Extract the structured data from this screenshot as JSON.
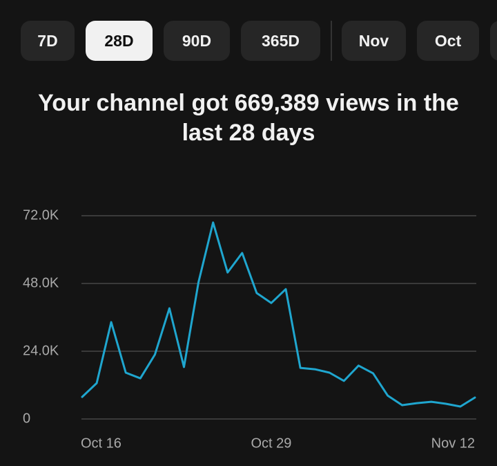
{
  "tabs": [
    "7D",
    "28D",
    "90D",
    "365D",
    "Nov",
    "Oct"
  ],
  "chart_data": {
    "type": "line",
    "title": "Your channel got 669,389 views in the last 28 days",
    "x": [
      "Oct 16",
      null,
      null,
      null,
      null,
      null,
      null,
      null,
      null,
      null,
      null,
      null,
      null,
      "Oct 29",
      null,
      null,
      null,
      null,
      null,
      null,
      null,
      null,
      null,
      null,
      null,
      null,
      null,
      "Nov 12"
    ],
    "values": [
      7800,
      12700,
      34300,
      16400,
      14400,
      22800,
      39200,
      18400,
      48500,
      69600,
      51900,
      58800,
      44600,
      41100,
      46000,
      18100,
      17600,
      16400,
      13500,
      18900,
      16200,
      8300,
      4900,
      5600,
      6100,
      5400,
      4400,
      7600
    ],
    "color": "#1fa6cf",
    "ylim": [
      0,
      72000
    ],
    "yticks": [
      0,
      {
        "value": 24000,
        "label": "24.0K"
      },
      {
        "value": 48000,
        "label": "48.0K"
      },
      {
        "value": 72000,
        "label": "72.0K"
      }
    ],
    "grid": true
  }
}
